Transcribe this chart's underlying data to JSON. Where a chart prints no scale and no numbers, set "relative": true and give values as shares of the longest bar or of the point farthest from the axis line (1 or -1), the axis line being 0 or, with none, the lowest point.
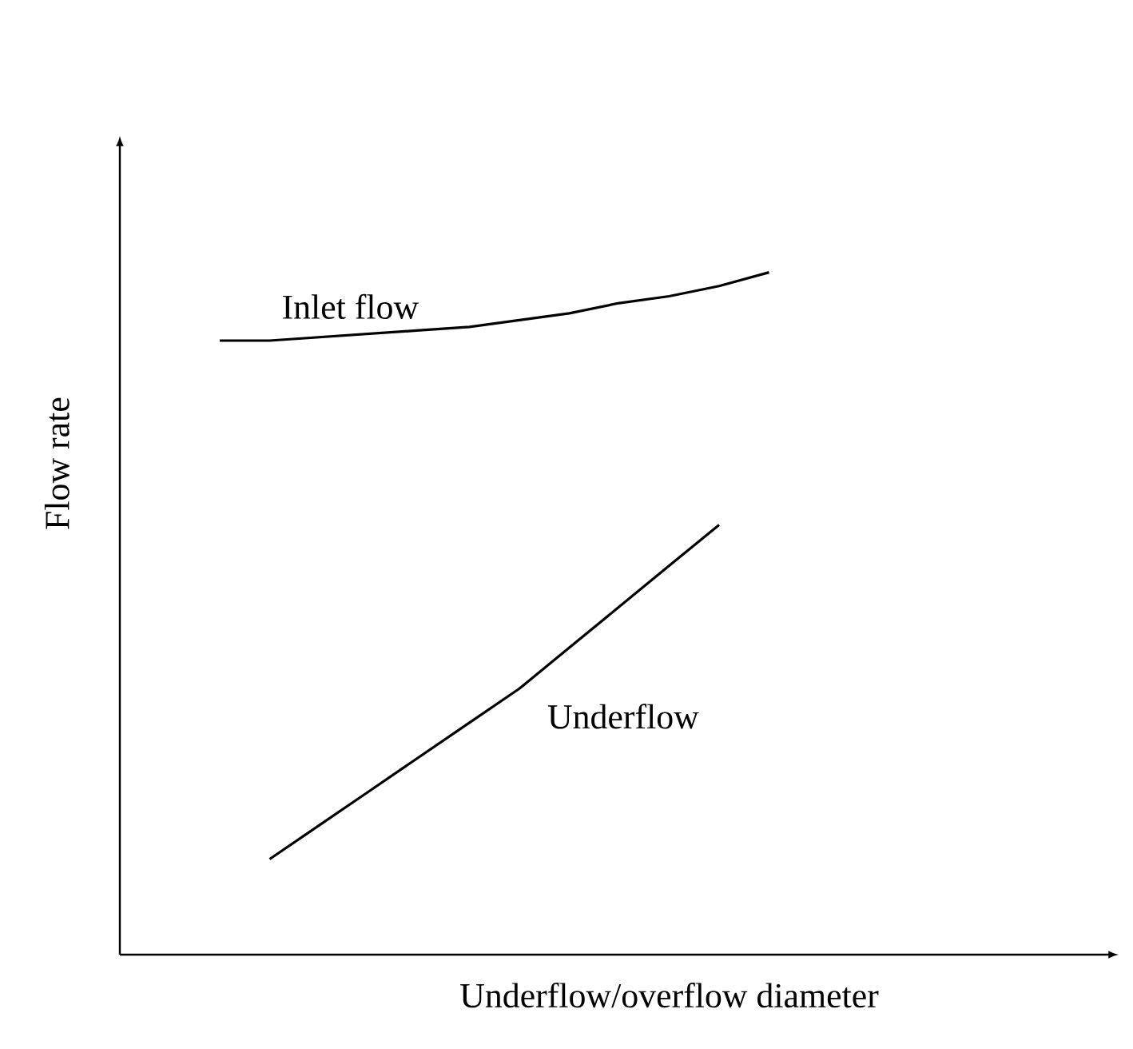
{
  "chart_data": {
    "type": "line",
    "relative": true,
    "xlabel": "Underflow/overflow diameter",
    "ylabel": "Flow rate",
    "categories": [
      null,
      null,
      null,
      null,
      null,
      null,
      null,
      null,
      null,
      null,
      null,
      null,
      null,
      null,
      null,
      null,
      null,
      null,
      null,
      null,
      null
    ],
    "series": [
      {
        "name": "Inlet flow",
        "color": "#000000",
        "values": [
          null,
          null,
          0.9,
          0.9,
          0.905,
          0.91,
          0.915,
          0.92,
          0.93,
          0.94,
          0.955,
          0.965,
          0.98,
          1.0,
          null,
          null,
          null,
          null,
          null,
          null,
          null
        ]
      },
      {
        "name": "Underflow",
        "color": "#000000",
        "values": [
          null,
          null,
          null,
          0.14,
          0.19,
          0.24,
          0.29,
          0.34,
          0.39,
          0.45,
          0.51,
          0.57,
          0.63,
          null,
          null,
          null,
          null,
          null,
          null,
          null,
          null
        ]
      }
    ],
    "legend": false,
    "marker": "none",
    "line_style": "solid"
  }
}
